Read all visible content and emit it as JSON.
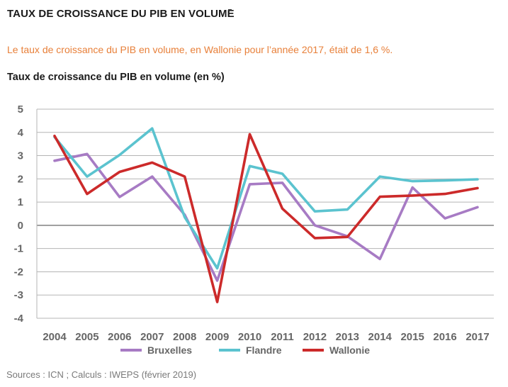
{
  "header": {
    "title": "TAUX DE CROISSANCE DU PIB EN VOLUME"
  },
  "subtitle": "Le taux de croissance du PIB en volume, en Wallonie pour l’année 2017, était de 1,6 %.",
  "source": "Sources : ICN ; Calculs : IWEPS (février 2019)",
  "chart_data": {
    "type": "line",
    "title": "Taux de croissance du PIB en volume (en %)",
    "xlabel": "",
    "ylabel": "",
    "x": [
      "2004",
      "2005",
      "2006",
      "2007",
      "2008",
      "2009",
      "2010",
      "2011",
      "2012",
      "2013",
      "2014",
      "2015",
      "2016",
      "2017"
    ],
    "ylim": [
      -4,
      5
    ],
    "yticks": [
      "5",
      "4",
      "3",
      "2",
      "1",
      "0",
      "-1",
      "-2",
      "-3",
      "-4"
    ],
    "grid": true,
    "legend_position": "bottom",
    "series": [
      {
        "name": "Bruxelles",
        "color": "#a77bc4",
        "values": [
          2.78,
          3.07,
          1.22,
          2.1,
          0.45,
          -2.38,
          1.77,
          1.83,
          0.0,
          -0.47,
          -1.45,
          1.63,
          0.3,
          0.78
        ]
      },
      {
        "name": "Flandre",
        "color": "#5bc3cf",
        "values": [
          3.8,
          2.1,
          3.03,
          4.17,
          0.35,
          -1.85,
          2.55,
          2.22,
          0.6,
          0.68,
          2.1,
          1.9,
          1.93,
          1.98
        ]
      },
      {
        "name": "Wallonie",
        "color": "#cc2a2a",
        "values": [
          3.85,
          1.35,
          2.3,
          2.7,
          2.1,
          -3.3,
          3.92,
          0.72,
          -0.55,
          -0.5,
          1.23,
          1.28,
          1.35,
          1.6
        ]
      }
    ]
  }
}
